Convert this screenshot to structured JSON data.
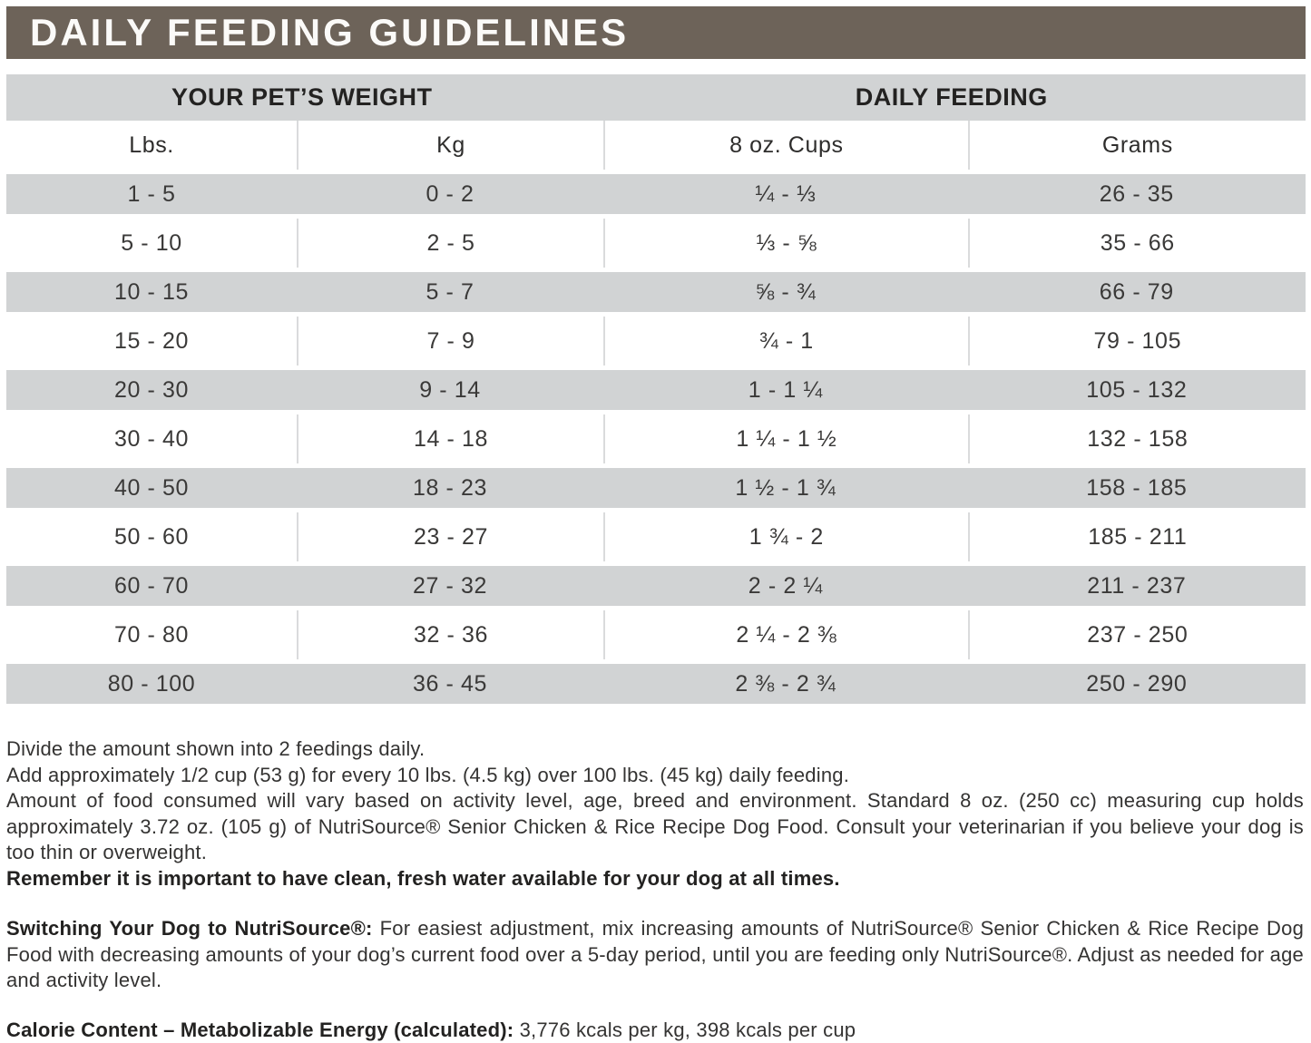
{
  "title": "DAILY FEEDING GUIDELINES",
  "colors": {
    "title_bar": "#6d6359",
    "header_band": "#d1d3d4",
    "row_stripe": "#d1d3d4",
    "text": "#2e2d2c"
  },
  "table": {
    "group_headers": [
      "YOUR PET’S WEIGHT",
      "DAILY FEEDING"
    ],
    "columns": [
      "Lbs.",
      "Kg",
      "8 oz. Cups",
      "Grams"
    ],
    "rows": [
      [
        "1 - 5",
        "0 - 2",
        "¼ - ⅓",
        "26 - 35"
      ],
      [
        "5 - 10",
        "2 - 5",
        "⅓ - ⅝",
        "35 - 66"
      ],
      [
        "10 - 15",
        "5 - 7",
        "⅝ - ¾",
        "66 - 79"
      ],
      [
        "15 - 20",
        "7 - 9",
        "¾ - 1",
        "79 - 105"
      ],
      [
        "20 - 30",
        "9 - 14",
        "1 - 1 ¼",
        "105 - 132"
      ],
      [
        "30 - 40",
        "14 - 18",
        "1 ¼ - 1 ½",
        "132 - 158"
      ],
      [
        "40 - 50",
        "18 - 23",
        "1 ½ - 1 ¾",
        "158 - 185"
      ],
      [
        "50 - 60",
        "23 - 27",
        "1 ¾ - 2",
        "185 - 211"
      ],
      [
        "60 - 70",
        "27 - 32",
        "2 - 2 ¼",
        "211 - 237"
      ],
      [
        "70 - 80",
        "32 - 36",
        "2 ¼ - 2 ⅜",
        "237 - 250"
      ],
      [
        "80 - 100",
        "36 - 45",
        "2 ⅜ - 2 ¾",
        "250 - 290"
      ]
    ]
  },
  "notes": {
    "divide": "Divide the amount shown into 2 feedings daily.",
    "add": "Add approximately 1/2 cup (53 g) for every 10 lbs. (4.5 kg) over 100 lbs. (45 kg) daily feeding.",
    "amount": "Amount of food consumed will vary based on activity level, age, breed and environment. Standard 8 oz. (250 cc) measuring cup holds approximately 3.72 oz. (105 g) of NutriSource® Senior Chicken & Rice Recipe Dog Food. Consult your veterinarian if you believe your dog is too thin or overweight.",
    "water": "Remember it is important to have clean, fresh water available for your dog at all times.",
    "switching_lead": "Switching Your Dog to NutriSource®:",
    "switching_body": " For easiest adjustment, mix increasing amounts of NutriSource® Senior Chicken & Rice Recipe Dog Food with decreasing amounts of your dog’s current food over a 5-day period, until you are feeding only NutriSource®. Adjust as needed for age and activity level.",
    "calorie_lead": "Calorie Content – Metabolizable Energy (calculated):",
    "calorie_body": " 3,776 kcals per kg, 398 kcals per cup"
  }
}
